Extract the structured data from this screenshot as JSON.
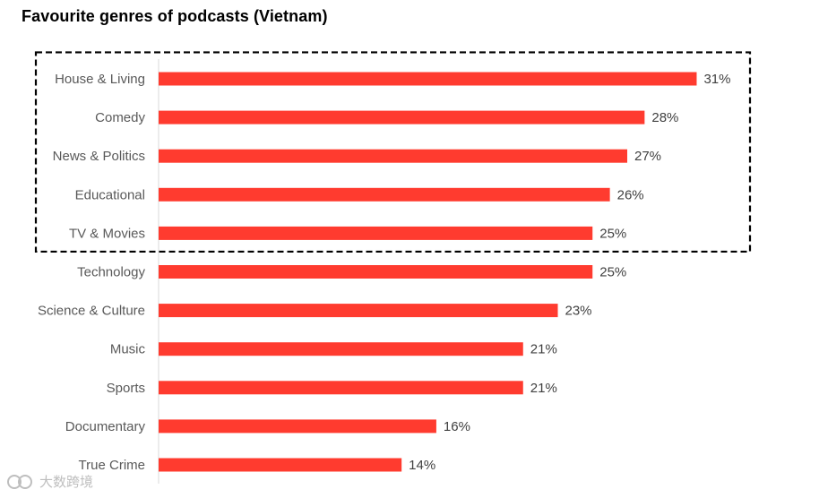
{
  "chart_data": {
    "type": "bar",
    "orientation": "horizontal",
    "title": "Favourite genres of podcasts (Vietnam)",
    "categories": [
      "House & Living",
      "Comedy",
      "News & Politics",
      "Educational",
      "TV & Movies",
      "Technology",
      "Science & Culture",
      "Music",
      "Sports",
      "Documentary",
      "True Crime"
    ],
    "values": [
      31,
      28,
      27,
      26,
      25,
      25,
      23,
      21,
      21,
      16,
      14
    ],
    "value_labels": [
      "31%",
      "28%",
      "27%",
      "26%",
      "25%",
      "25%",
      "23%",
      "21%",
      "21%",
      "16%",
      "14%"
    ],
    "unit": "%",
    "highlighted_count": 5,
    "xlabel": "",
    "ylabel": "",
    "grid": false,
    "colors": {
      "bar": "#FF3B2F",
      "highlight_border": "#000000",
      "axis": "#D9D9D9"
    }
  },
  "watermark": {
    "text": "大数跨境",
    "icon": "logo-icon"
  }
}
